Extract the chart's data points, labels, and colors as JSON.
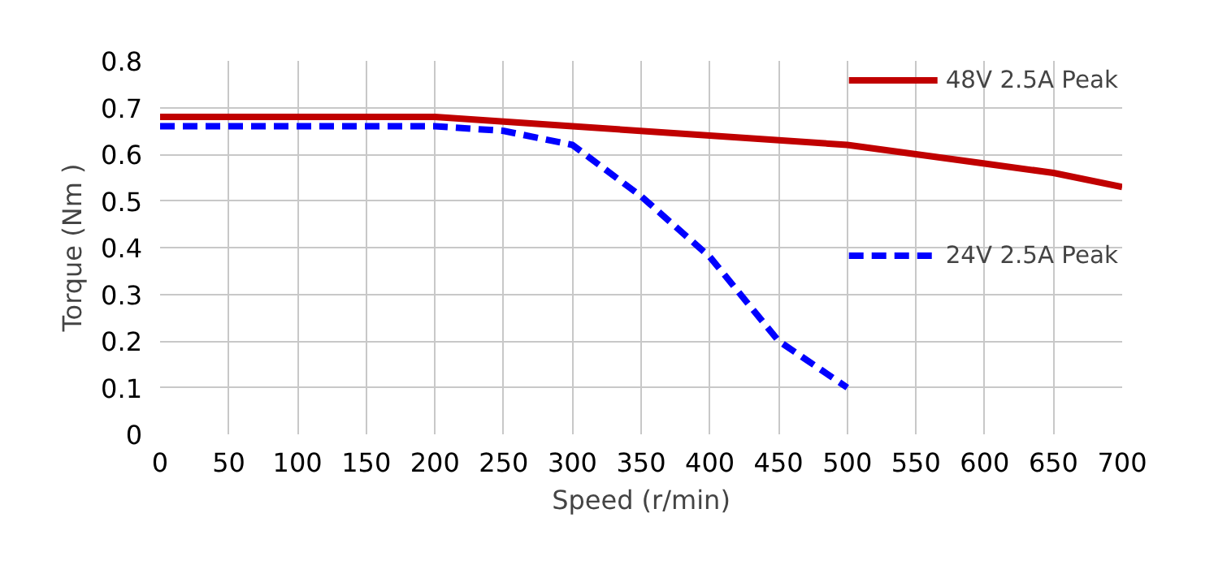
{
  "chart_data": {
    "type": "line",
    "xlabel": "Speed (r/min)",
    "ylabel": "Torque (Nm )",
    "xlim": [
      0,
      700
    ],
    "xticks": [
      0,
      50,
      100,
      150,
      200,
      250,
      300,
      350,
      400,
      450,
      500,
      550,
      600,
      650,
      700
    ],
    "ylim": [
      0,
      0.8
    ],
    "yticks": [
      0,
      0.1,
      0.2,
      0.3,
      0.4,
      0.5,
      0.6,
      0.7,
      0.8
    ],
    "grid": true,
    "legend": "top right",
    "marker": "none",
    "series": [
      {
        "name": "48V 2.5A Peak",
        "color": "#c00000",
        "line_style": "solid",
        "x": [
          0,
          100,
          200,
          250,
          300,
          400,
          500,
          550,
          600,
          650,
          700
        ],
        "values": [
          0.68,
          0.68,
          0.68,
          0.67,
          0.66,
          0.64,
          0.62,
          0.6,
          0.58,
          0.56,
          0.53
        ]
      },
      {
        "name": "24V 2.5A Peak",
        "color": "#0000ff",
        "line_style": "dashed",
        "x": [
          0,
          100,
          200,
          250,
          300,
          350,
          400,
          450,
          500
        ],
        "values": [
          0.66,
          0.66,
          0.66,
          0.65,
          0.62,
          0.51,
          0.38,
          0.2,
          0.1
        ]
      }
    ]
  }
}
